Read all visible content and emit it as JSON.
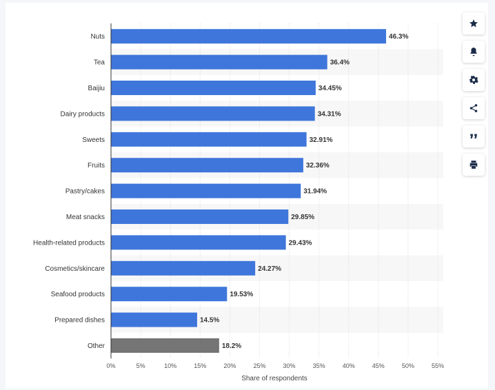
{
  "colors": {
    "bar": "#3f76db",
    "bar_other": "#757575",
    "grid": "#d9d9d9",
    "band": "#f7f7f7",
    "icon": "#1b2b48"
  },
  "toolbar": {
    "buttons": [
      {
        "icon": "star-icon"
      },
      {
        "icon": "bell-icon"
      },
      {
        "icon": "gear-icon"
      },
      {
        "icon": "share-icon"
      },
      {
        "icon": "quote-icon"
      },
      {
        "icon": "print-icon"
      }
    ]
  },
  "chart_data": {
    "type": "bar",
    "orientation": "horizontal",
    "categories": [
      "Nuts",
      "Tea",
      "Baijiu",
      "Dairy products",
      "Sweets",
      "Fruits",
      "Pastry/cakes",
      "Meat snacks",
      "Health-related products",
      "Cosmetics/skincare",
      "Seafood products",
      "Prepared dishes",
      "Other"
    ],
    "values": [
      46.3,
      36.4,
      34.45,
      34.31,
      32.91,
      32.36,
      31.94,
      29.85,
      29.43,
      24.27,
      19.53,
      14.5,
      18.2
    ],
    "value_labels": [
      "46.3%",
      "36.4%",
      "34.45%",
      "34.31%",
      "32.91%",
      "32.36%",
      "31.94%",
      "29.85%",
      "29.43%",
      "24.27%",
      "19.53%",
      "14.5%",
      "18.2%"
    ],
    "highlight_category": "Other",
    "xlim": [
      0,
      55
    ],
    "xticks": [
      0,
      5,
      10,
      15,
      20,
      25,
      30,
      35,
      40,
      45,
      50,
      55
    ],
    "xtick_labels": [
      "0%",
      "5%",
      "10%",
      "15%",
      "20%",
      "25%",
      "30%",
      "35%",
      "40%",
      "45%",
      "50%",
      "55%"
    ],
    "xlabel": "Share of respondents",
    "ylabel": "",
    "title": "",
    "grid": true
  }
}
